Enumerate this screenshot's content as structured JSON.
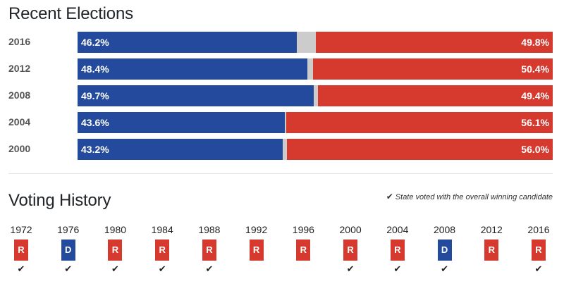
{
  "recent": {
    "title": "Recent Elections"
  },
  "history": {
    "title": "Voting History",
    "legend": "State voted with the overall winning candidate",
    "check_icon": "check-icon",
    "check_glyph": "✔",
    "items": [
      {
        "year": "1972",
        "party": "R",
        "winner": true
      },
      {
        "year": "1976",
        "party": "D",
        "winner": true
      },
      {
        "year": "1980",
        "party": "R",
        "winner": true
      },
      {
        "year": "1984",
        "party": "R",
        "winner": true
      },
      {
        "year": "1988",
        "party": "R",
        "winner": true
      },
      {
        "year": "1992",
        "party": "R",
        "winner": false
      },
      {
        "year": "1996",
        "party": "R",
        "winner": false
      },
      {
        "year": "2000",
        "party": "R",
        "winner": true
      },
      {
        "year": "2004",
        "party": "R",
        "winner": true
      },
      {
        "year": "2008",
        "party": "D",
        "winner": true
      },
      {
        "year": "2012",
        "party": "R",
        "winner": false
      },
      {
        "year": "2016",
        "party": "R",
        "winner": true
      }
    ]
  },
  "colors": {
    "democrat": "#234a9c",
    "republican": "#d63a2f",
    "other": "#cccccc"
  },
  "chart_data": {
    "type": "bar",
    "stacked": true,
    "orientation": "horizontal",
    "title": "Recent Elections",
    "categories": [
      "2016",
      "2012",
      "2008",
      "2004",
      "2000"
    ],
    "series": [
      {
        "values": [
          46.2,
          48.4,
          49.7,
          43.6,
          43.2
        ],
        "labels": [
          "46.2%",
          "48.4%",
          "49.7%",
          "43.6%",
          "43.2%"
        ]
      },
      {
        "values": [
          49.8,
          50.4,
          49.4,
          56.1,
          56.0
        ],
        "labels": [
          "49.8%",
          "50.4%",
          "49.4%",
          "56.1%",
          "56.0%"
        ]
      }
    ],
    "xlim": [
      0,
      100
    ]
  }
}
